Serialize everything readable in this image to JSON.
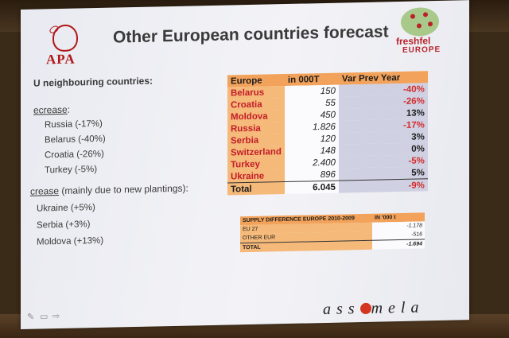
{
  "header": {
    "title": "Other European countries forecast",
    "logo_left": "APA",
    "logo_right_name": "freshfel",
    "logo_right_sub": "EUROPE"
  },
  "left": {
    "neighbours": "U neighbouring countries:",
    "decrease_heading": "ecrease",
    "decrease_colon": ":",
    "decrease_items": [
      "Russia  (-17%)",
      "Belarus (-40%)",
      "Croatia (-26%)",
      "Turkey (-5%)"
    ],
    "increase_heading": "crease",
    "increase_rest": " (mainly due to new plantings):",
    "increase_items": [
      "Ukraine (+5%)",
      "Serbia (+3%)",
      "Moldova (+13%)"
    ]
  },
  "forecast_table": {
    "headers": [
      "Europe",
      "in 000T",
      "Var Prev Year"
    ],
    "rows": [
      {
        "country": "Belarus",
        "volume": "150",
        "var": "-40%"
      },
      {
        "country": "Croatia",
        "volume": "55",
        "var": "-26%"
      },
      {
        "country": "Moldova",
        "volume": "450",
        "var": "13%"
      },
      {
        "country": "Russia",
        "volume": "1.826",
        "var": "-17%"
      },
      {
        "country": "Serbia",
        "volume": "120",
        "var": "3%"
      },
      {
        "country": "Switzerland",
        "volume": "148",
        "var": "0%"
      },
      {
        "country": "Turkey",
        "volume": "2.400",
        "var": "-5%"
      },
      {
        "country": "Ukraine",
        "volume": "896",
        "var": "5%"
      }
    ],
    "total": {
      "country": "Total",
      "volume": "6.045",
      "var": "-9%"
    }
  },
  "supply_table": {
    "headers": [
      "SUPPLY DIFFERENCE EUROPE 2010-2009",
      "IN '000 t"
    ],
    "rows": [
      {
        "label": "EU 27",
        "value": "-1.178"
      },
      {
        "label": "OTHER EUR",
        "value": "-516"
      }
    ],
    "total": {
      "label": "TOTAL",
      "value": "-1.694"
    }
  },
  "footer": {
    "brand_left": "ass",
    "brand_right": "mela"
  },
  "colors": {
    "accent_red": "#d32a2a",
    "table_orange": "#f2a25a",
    "table_lilac": "#cfd1e2"
  }
}
